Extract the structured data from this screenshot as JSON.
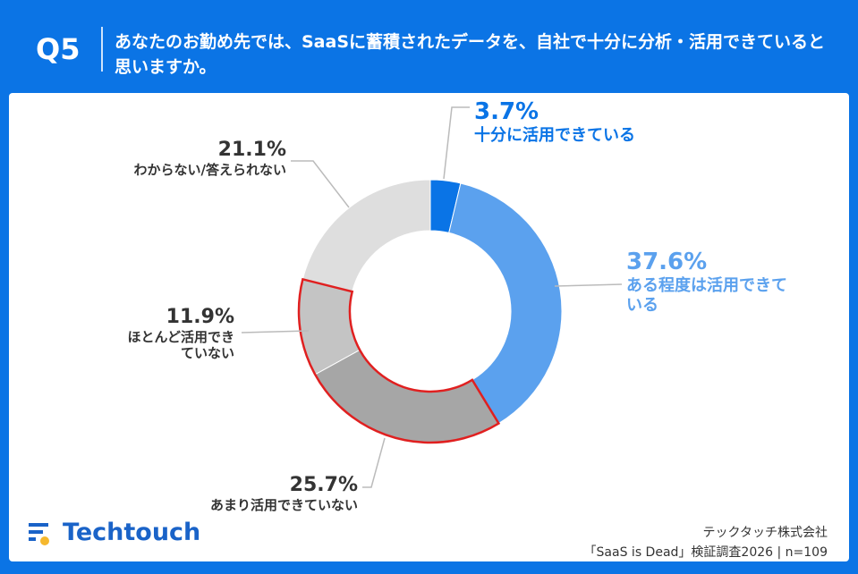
{
  "header": {
    "question_no": "Q5",
    "question": "あなたのお勤め先では、SaaSに蓄積されたデータを、自社で十分に分析・活用できていると思いますか。"
  },
  "chart_data": {
    "type": "pie",
    "donut": true,
    "slices": [
      {
        "label": "十分に活用できている",
        "value": 3.7,
        "pct_label": "3.7%",
        "color": "#0a74e6"
      },
      {
        "label": "ある程度は活用できている",
        "value": 37.6,
        "pct_label": "37.6%",
        "color": "#5ba1ee"
      },
      {
        "label": "あまり活用できていない",
        "value": 25.7,
        "pct_label": "25.7%",
        "color": "#a6a6a6"
      },
      {
        "label": "ほとんど活用できていない",
        "value": 11.9,
        "pct_label": "11.9%",
        "color": "#c4c4c4"
      },
      {
        "label": "わからない/答えられない",
        "value": 21.1,
        "pct_label": "21.1%",
        "color": "#dedede"
      }
    ],
    "highlight": {
      "slices": [
        2,
        3
      ],
      "color": "#e02020"
    }
  },
  "footer": {
    "logo": "Techtouch",
    "company": "テックタッチ株式会社",
    "source": "「SaaS is Dead」検証調査2026 | n=109"
  }
}
